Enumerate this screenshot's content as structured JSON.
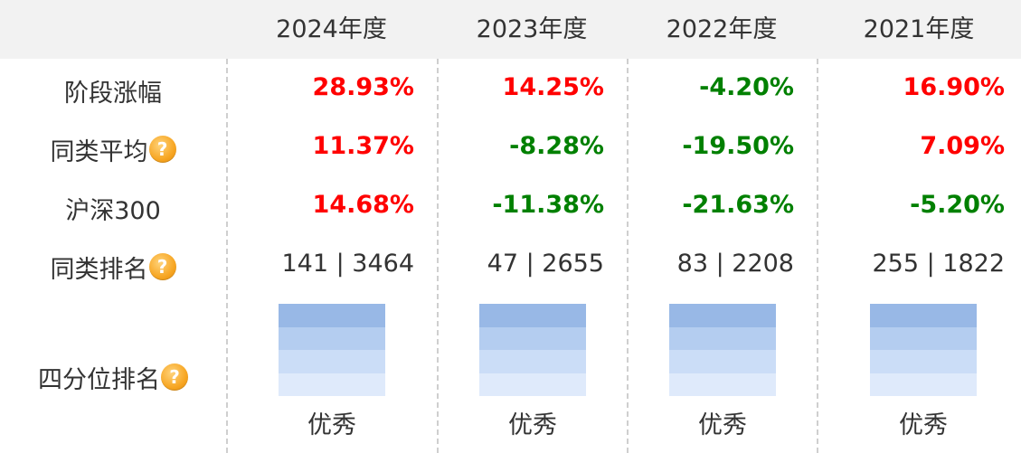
{
  "header": {
    "years": [
      "2024年度",
      "2023年度",
      "2022年度",
      "2021年度"
    ]
  },
  "rows": {
    "stage_return": {
      "label": "阶段涨幅",
      "values": [
        "28.93%",
        "14.25%",
        "-4.20%",
        "16.90%"
      ],
      "dirs": [
        "up",
        "up",
        "down",
        "up"
      ]
    },
    "peer_avg": {
      "label": "同类平均",
      "values": [
        "11.37%",
        "-8.28%",
        "-19.50%",
        "7.09%"
      ],
      "dirs": [
        "up",
        "down",
        "down",
        "up"
      ]
    },
    "hs300": {
      "label": "沪深300",
      "values": [
        "14.68%",
        "-11.38%",
        "-21.63%",
        "-5.20%"
      ],
      "dirs": [
        "up",
        "down",
        "down",
        "down"
      ]
    },
    "peer_rank": {
      "label": "同类排名",
      "values": [
        "141 | 3464",
        "47 | 2655",
        "83 | 2208",
        "255 | 1822"
      ]
    },
    "quartile": {
      "label": "四分位排名",
      "values": [
        "优秀",
        "优秀",
        "优秀",
        "优秀"
      ]
    }
  },
  "help_icon": {
    "name": "question-icon",
    "glyph": "?"
  },
  "colors": {
    "up": "#ff0000",
    "down": "#008000",
    "header_bg": "#f2f2f2",
    "quartile_levels": [
      "#98b8e6",
      "#b4cdf0",
      "#cbddf7",
      "#dfeafb"
    ]
  }
}
